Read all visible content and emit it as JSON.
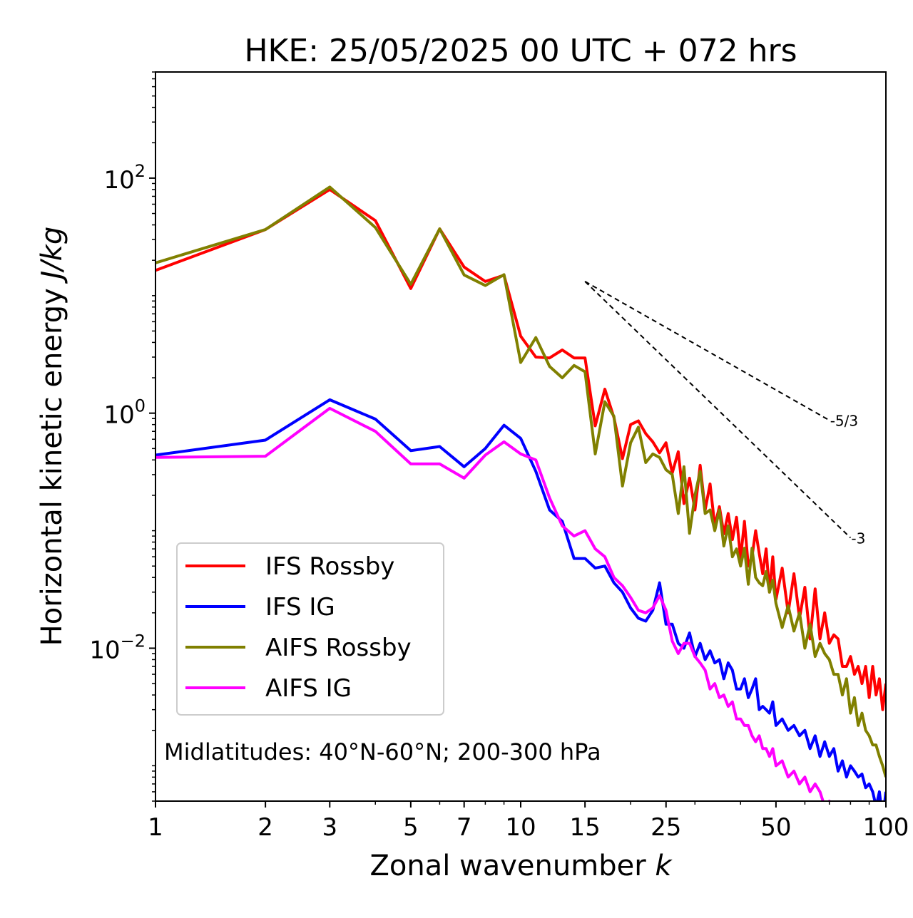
{
  "chart_data": {
    "type": "line",
    "title": "HKE: 25/05/2025 00 UTC + 072 hrs",
    "xlabel": "Zonal wavenumber",
    "xlabel_var": "k",
    "ylabel": "Horizontal kinetic energy",
    "ylabel_unit": "J/kg",
    "x_scale": "log",
    "y_scale": "log",
    "xlim": [
      1,
      100
    ],
    "ylim": [
      0.0005,
      800
    ],
    "x_ticks": [
      1,
      2,
      3,
      5,
      7,
      10,
      15,
      25,
      50,
      100
    ],
    "x_tick_labels": [
      "1",
      "2",
      "3",
      "5",
      "7",
      "10",
      "15",
      "25",
      "50",
      "100"
    ],
    "y_ticks": [
      {
        "value": 100,
        "base": "10",
        "exp": "2"
      },
      {
        "value": 1,
        "base": "10",
        "exp": "0"
      },
      {
        "value": 0.01,
        "base": "10",
        "exp": "−2"
      }
    ],
    "grid": false,
    "legend_position": "lower-left",
    "annotation": "Midlatitudes: 40°N-60°N; 200-300 hPa",
    "reference_lines": [
      {
        "label": "-5/3",
        "slope": -1.6667,
        "x": [
          15,
          70
        ],
        "y": [
          13.2,
          0.87
        ],
        "color": "#000000",
        "style": "dashed"
      },
      {
        "label": "-3",
        "slope": -3,
        "x": [
          15,
          80
        ],
        "y": [
          13.2,
          0.087
        ],
        "color": "#000000",
        "style": "dashed"
      }
    ],
    "series": [
      {
        "name": "IFS Rossby",
        "color": "#ff0000",
        "x": [
          1,
          2,
          3,
          4,
          5,
          6,
          7,
          8,
          9,
          10,
          11,
          12,
          13,
          14,
          15,
          16,
          17,
          18,
          19,
          20,
          21,
          22,
          23,
          24,
          25,
          26,
          27,
          28,
          29,
          30,
          31,
          32,
          33,
          34,
          35,
          36,
          37,
          38,
          39,
          40,
          41,
          42,
          43,
          44,
          45,
          46,
          47,
          48,
          49,
          50,
          52,
          54,
          56,
          58,
          60,
          62,
          64,
          66,
          68,
          70,
          72,
          74,
          76,
          78,
          80,
          82,
          84,
          86,
          88,
          90,
          92,
          94,
          96,
          98,
          100
        ],
        "y": [
          16.4,
          36.5,
          80,
          43.5,
          11.5,
          37,
          17.5,
          13.2,
          14.9,
          4.52,
          3.0,
          2.95,
          3.45,
          2.95,
          2.95,
          0.78,
          1.6,
          0.92,
          0.41,
          0.8,
          0.86,
          0.67,
          0.57,
          0.46,
          0.56,
          0.31,
          0.47,
          0.17,
          0.28,
          0.15,
          0.36,
          0.15,
          0.25,
          0.11,
          0.16,
          0.094,
          0.14,
          0.084,
          0.13,
          0.058,
          0.12,
          0.05,
          0.06,
          0.1,
          0.064,
          0.043,
          0.07,
          0.03,
          0.06,
          0.026,
          0.048,
          0.02,
          0.043,
          0.018,
          0.033,
          0.012,
          0.032,
          0.012,
          0.02,
          0.011,
          0.013,
          0.012,
          0.007,
          0.007,
          0.0085,
          0.006,
          0.007,
          0.005,
          0.007,
          0.0038,
          0.007,
          0.004,
          0.0055,
          0.003,
          0.005
        ]
      },
      {
        "name": "IFS IG",
        "color": "#0000ff",
        "x": [
          1,
          2,
          3,
          4,
          5,
          6,
          7,
          8,
          9,
          10,
          11,
          12,
          13,
          14,
          15,
          16,
          17,
          18,
          19,
          20,
          21,
          22,
          23,
          24,
          25,
          26,
          27,
          28,
          29,
          30,
          31,
          32,
          33,
          34,
          35,
          36,
          37,
          38,
          39,
          40,
          41,
          42,
          43,
          44,
          45,
          46,
          47,
          48,
          49,
          50,
          52,
          54,
          56,
          58,
          60,
          62,
          64,
          66,
          68,
          70,
          72,
          74,
          76,
          78,
          80,
          82,
          84,
          86,
          88,
          90,
          92,
          94,
          96,
          98,
          100
        ],
        "y": [
          0.44,
          0.59,
          1.3,
          0.89,
          0.48,
          0.52,
          0.35,
          0.5,
          0.79,
          0.61,
          0.32,
          0.15,
          0.12,
          0.058,
          0.058,
          0.048,
          0.05,
          0.036,
          0.03,
          0.022,
          0.018,
          0.017,
          0.021,
          0.036,
          0.016,
          0.016,
          0.011,
          0.01,
          0.0135,
          0.0085,
          0.011,
          0.008,
          0.0095,
          0.0075,
          0.008,
          0.0055,
          0.0075,
          0.0065,
          0.0045,
          0.0045,
          0.0055,
          0.0038,
          0.0045,
          0.0055,
          0.003,
          0.0032,
          0.003,
          0.0028,
          0.0035,
          0.0022,
          0.0025,
          0.002,
          0.0022,
          0.0018,
          0.002,
          0.0014,
          0.0018,
          0.0012,
          0.0016,
          0.0012,
          0.0014,
          0.0009,
          0.0011,
          0.0008,
          0.001,
          0.0009,
          0.0008,
          0.00085,
          0.00065,
          0.0007,
          0.0006,
          0.00045,
          0.0006,
          0.00035,
          0.0006
        ]
      },
      {
        "name": "AIFS Rossby",
        "color": "#808000",
        "x": [
          1,
          2,
          3,
          4,
          5,
          6,
          7,
          8,
          9,
          10,
          11,
          12,
          13,
          14,
          15,
          16,
          17,
          18,
          19,
          20,
          21,
          22,
          23,
          24,
          25,
          26,
          27,
          28,
          29,
          30,
          31,
          32,
          33,
          34,
          35,
          36,
          37,
          38,
          39,
          40,
          41,
          42,
          43,
          44,
          45,
          46,
          47,
          48,
          49,
          50,
          52,
          54,
          56,
          58,
          60,
          62,
          64,
          66,
          68,
          70,
          72,
          74,
          76,
          78,
          80,
          82,
          84,
          86,
          88,
          90,
          92,
          94,
          96,
          98,
          100
        ],
        "y": [
          19,
          36.5,
          84,
          38,
          12.5,
          37,
          15,
          12.2,
          15.1,
          2.7,
          4.4,
          2.5,
          2.0,
          2.55,
          2.25,
          0.45,
          1.25,
          0.94,
          0.24,
          0.56,
          0.76,
          0.38,
          0.45,
          0.42,
          0.33,
          0.3,
          0.14,
          0.35,
          0.095,
          0.2,
          0.32,
          0.14,
          0.15,
          0.1,
          0.15,
          0.074,
          0.11,
          0.06,
          0.07,
          0.05,
          0.071,
          0.035,
          0.071,
          0.04,
          0.036,
          0.034,
          0.045,
          0.03,
          0.038,
          0.024,
          0.015,
          0.023,
          0.014,
          0.02,
          0.01,
          0.016,
          0.0085,
          0.011,
          0.009,
          0.008,
          0.006,
          0.006,
          0.004,
          0.0055,
          0.0028,
          0.0038,
          0.0022,
          0.0028,
          0.002,
          0.0018,
          0.0015,
          0.0015,
          0.0012,
          0.001,
          0.0008
        ]
      },
      {
        "name": "AIFS IG",
        "color": "#ff00ff",
        "x": [
          1,
          2,
          3,
          4,
          5,
          6,
          7,
          8,
          9,
          10,
          11,
          12,
          13,
          14,
          15,
          16,
          17,
          18,
          19,
          20,
          21,
          22,
          23,
          24,
          25,
          26,
          27,
          28,
          29,
          30,
          31,
          32,
          33,
          34,
          35,
          36,
          37,
          38,
          39,
          40,
          41,
          42,
          43,
          44,
          45,
          46,
          47,
          48,
          49,
          50,
          52,
          54,
          56,
          58,
          60,
          62,
          64,
          66,
          68,
          70,
          72,
          74,
          76,
          78,
          80
        ],
        "y": [
          0.42,
          0.43,
          1.1,
          0.7,
          0.37,
          0.37,
          0.28,
          0.44,
          0.57,
          0.45,
          0.4,
          0.19,
          0.11,
          0.09,
          0.1,
          0.07,
          0.06,
          0.04,
          0.034,
          0.027,
          0.021,
          0.02,
          0.022,
          0.028,
          0.021,
          0.0115,
          0.009,
          0.011,
          0.011,
          0.0085,
          0.0075,
          0.0065,
          0.0045,
          0.005,
          0.0038,
          0.004,
          0.0032,
          0.0035,
          0.0025,
          0.0025,
          0.0022,
          0.0022,
          0.0018,
          0.0016,
          0.0018,
          0.0014,
          0.0014,
          0.0012,
          0.0014,
          0.001,
          0.0011,
          0.0008,
          0.0009,
          0.0007,
          0.0008,
          0.0006,
          0.0007,
          0.0006,
          0.00045,
          0.0005,
          0.00042,
          0.0004,
          0.00035,
          0.0004,
          0.0003
        ]
      }
    ]
  }
}
